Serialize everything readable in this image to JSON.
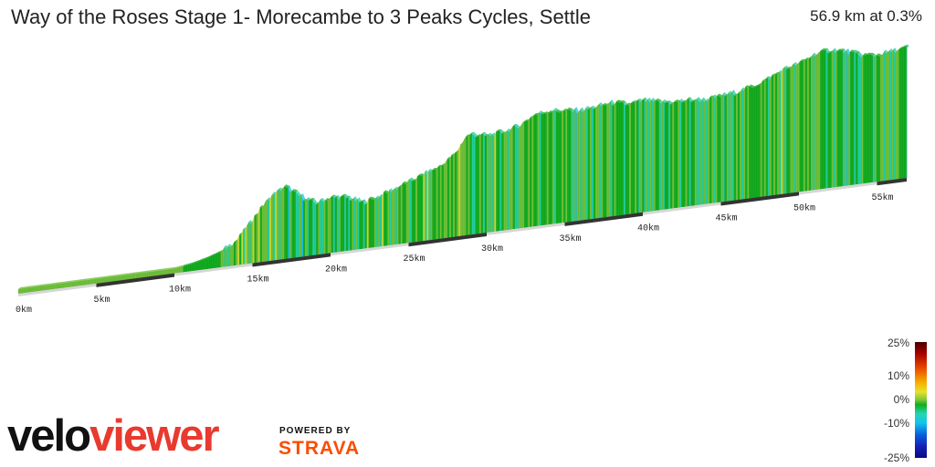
{
  "header": {
    "title": "Way of the Roses Stage 1- Morecambe to 3 Peaks Cycles, Settle",
    "summary": "56.9 km at 0.3%"
  },
  "chart_data": {
    "type": "area",
    "title": "Way of the Roses Stage 1- Morecambe to 3 Peaks Cycles, Settle",
    "subtitle": "56.9 km at 0.3%",
    "xlabel": "",
    "ylabel": "",
    "x_unit": "km",
    "x_ticks": [
      "0km",
      "5km",
      "10km",
      "15km",
      "20km",
      "25km",
      "30km",
      "35km",
      "40km",
      "45km",
      "50km",
      "55km"
    ],
    "xlim": [
      0,
      56.9
    ],
    "total_distance_km": 56.9,
    "average_gradient_percent": 0.3,
    "relative_elevation": [
      [
        0,
        0.0
      ],
      [
        2,
        0.0
      ],
      [
        4,
        0.0
      ],
      [
        6,
        0.0
      ],
      [
        8,
        0.0
      ],
      [
        10,
        0.0
      ],
      [
        11,
        0.6
      ],
      [
        12,
        1.6
      ],
      [
        13,
        3.0
      ],
      [
        14,
        5.5
      ],
      [
        14.8,
        9.5
      ],
      [
        15.6,
        13.5
      ],
      [
        16.2,
        16.0
      ],
      [
        17,
        18.0
      ],
      [
        18,
        15.0
      ],
      [
        19,
        12.5
      ],
      [
        20,
        13.5
      ],
      [
        21,
        13.0
      ],
      [
        22,
        11.0
      ],
      [
        23,
        12.0
      ],
      [
        24,
        13.5
      ],
      [
        25,
        15.0
      ],
      [
        26,
        16.5
      ],
      [
        27,
        18.0
      ],
      [
        28,
        21.0
      ],
      [
        28.6,
        25.0
      ],
      [
        29,
        25.5
      ],
      [
        30,
        24.5
      ],
      [
        31,
        25.0
      ],
      [
        32,
        26.0
      ],
      [
        33,
        28.5
      ],
      [
        34,
        29.0
      ],
      [
        35,
        28.5
      ],
      [
        36,
        28.0
      ],
      [
        37,
        28.5
      ],
      [
        38,
        29.0
      ],
      [
        39,
        28.0
      ],
      [
        40,
        28.5
      ],
      [
        41,
        27.5
      ],
      [
        42,
        27.0
      ],
      [
        43,
        27.0
      ],
      [
        44,
        26.5
      ],
      [
        45,
        27.0
      ],
      [
        46,
        27.5
      ],
      [
        47,
        28.5
      ],
      [
        48,
        30.0
      ],
      [
        49,
        32.0
      ],
      [
        50,
        33.0
      ],
      [
        51,
        35.0
      ],
      [
        52,
        35.5
      ],
      [
        53,
        34.5
      ],
      [
        54,
        33.0
      ],
      [
        55,
        32.5
      ],
      [
        56,
        33.0
      ],
      [
        56.9,
        33.5
      ]
    ],
    "gradient_scale": {
      "ticks": [
        "25%",
        "10%",
        "0%",
        "-10%",
        "-25%"
      ],
      "colors": [
        "#5a0000",
        "#b20000",
        "#e53b00",
        "#f7a400",
        "#f3e024",
        "#b6d534",
        "#12b11e",
        "#1fd0a8",
        "#14c5e8",
        "#0a6fe0",
        "#1a24c0",
        "#0a0a8a"
      ]
    },
    "grid": false,
    "legend": "bottom-right"
  },
  "branding": {
    "logo_part1": "velo",
    "logo_part2": "viewer",
    "powered_by": "POWERED BY",
    "strava": "STRAVA"
  }
}
